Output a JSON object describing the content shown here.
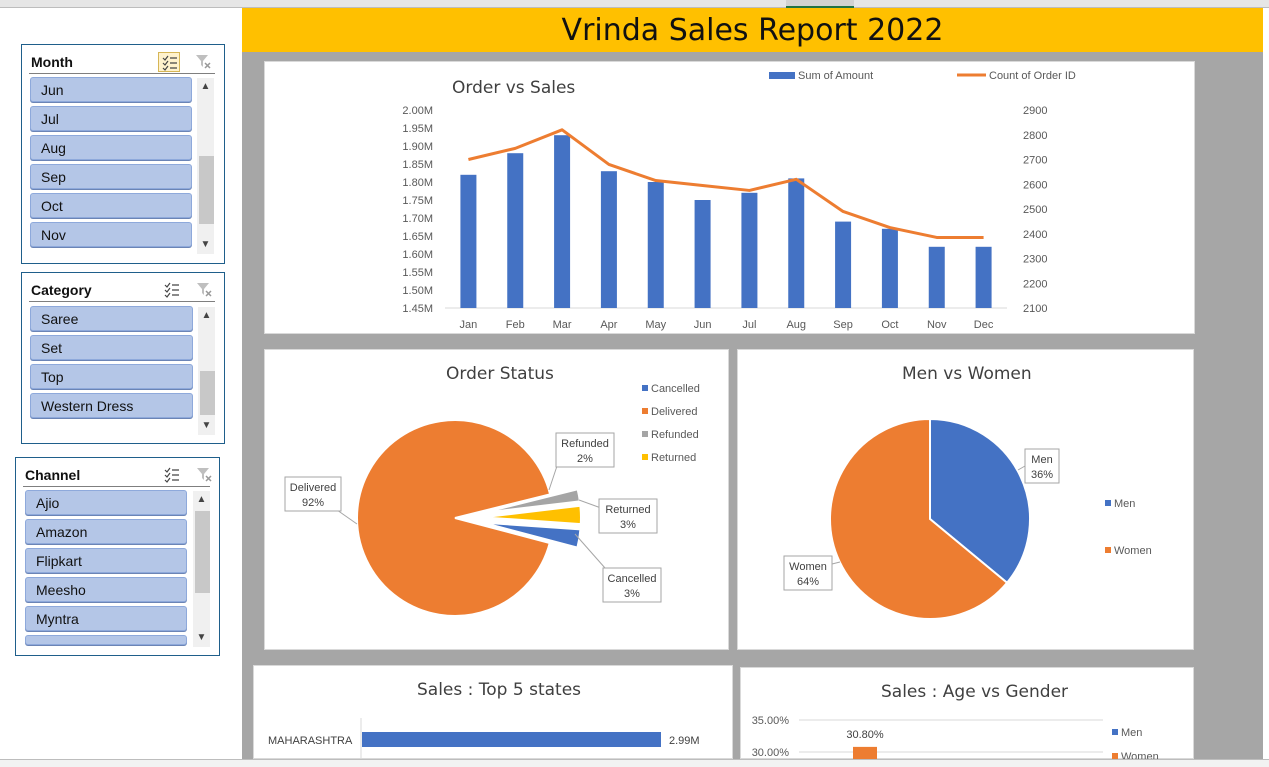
{
  "report_title": "Vrinda Sales Report 2022",
  "colors": {
    "blue": "#4472c4",
    "orange": "#ed7d31",
    "gray": "#a5a5a5",
    "yellow": "#ffc000",
    "title_band": "#ffc000"
  },
  "slicers": {
    "month": {
      "title": "Month",
      "items": [
        "Jun",
        "Jul",
        "Aug",
        "Sep",
        "Oct",
        "Nov"
      ]
    },
    "category": {
      "title": "Category",
      "items": [
        "Saree",
        "Set",
        "Top",
        "Western Dress"
      ]
    },
    "channel": {
      "title": "Channel",
      "items": [
        "Ajio",
        "Amazon",
        "Flipkart",
        "Meesho",
        "Myntra"
      ]
    }
  },
  "chart_data": [
    {
      "type": "bar",
      "title": "Order vs Sales",
      "categories": [
        "Jan",
        "Feb",
        "Mar",
        "Apr",
        "May",
        "Jun",
        "Jul",
        "Aug",
        "Sep",
        "Oct",
        "Nov",
        "Dec"
      ],
      "series": [
        {
          "name": "Sum of Amount",
          "type": "bar",
          "axis": "left",
          "values": [
            1.82,
            1.88,
            1.93,
            1.83,
            1.8,
            1.75,
            1.77,
            1.81,
            1.69,
            1.67,
            1.62,
            1.62
          ]
        },
        {
          "name": "Count of Order ID",
          "type": "line",
          "axis": "right",
          "values": [
            2700,
            2745,
            2820,
            2680,
            2615,
            2595,
            2575,
            2620,
            2490,
            2425,
            2385,
            2385
          ]
        }
      ],
      "y_left": {
        "ticks": [
          "1.45M",
          "1.50M",
          "1.55M",
          "1.60M",
          "1.65M",
          "1.70M",
          "1.75M",
          "1.80M",
          "1.85M",
          "1.90M",
          "1.95M",
          "2.00M"
        ],
        "ylim": [
          1.45,
          2.0
        ]
      },
      "y_right": {
        "ticks": [
          "2100",
          "2200",
          "2300",
          "2400",
          "2500",
          "2600",
          "2700",
          "2800",
          "2900"
        ],
        "ylim": [
          2100,
          2900
        ]
      },
      "legend_position": "top-right"
    },
    {
      "type": "pie",
      "title": "Order Status",
      "slices": [
        {
          "name": "Cancelled",
          "value": 3,
          "label": "Cancelled",
          "pct": "3%"
        },
        {
          "name": "Delivered",
          "value": 92,
          "label": "Delivered",
          "pct": "92%"
        },
        {
          "name": "Refunded",
          "value": 2,
          "label": "Refunded",
          "pct": "2%"
        },
        {
          "name": "Returned",
          "value": 3,
          "label": "Returned",
          "pct": "3%"
        }
      ],
      "legend_position": "top-right"
    },
    {
      "type": "pie",
      "title": "Men vs Women",
      "slices": [
        {
          "name": "Men",
          "value": 36,
          "label": "Men",
          "pct": "36%"
        },
        {
          "name": "Women",
          "value": 64,
          "label": "Women",
          "pct": "64%"
        }
      ],
      "legend_position": "right"
    },
    {
      "type": "bar",
      "orientation": "horizontal",
      "title": "Sales : Top 5 states",
      "categories": [
        "MAHARASHTRA"
      ],
      "values": [
        2.99
      ],
      "value_labels": [
        "2.99M"
      ]
    },
    {
      "type": "bar",
      "title": "Sales : Age vs Gender",
      "y_ticks": [
        "35.00%",
        "30.00%"
      ],
      "series": [
        {
          "name": "Men",
          "values": []
        },
        {
          "name": "Women",
          "values": [
            30.8
          ],
          "value_labels": [
            "30.80%"
          ]
        }
      ],
      "legend_position": "right"
    }
  ]
}
